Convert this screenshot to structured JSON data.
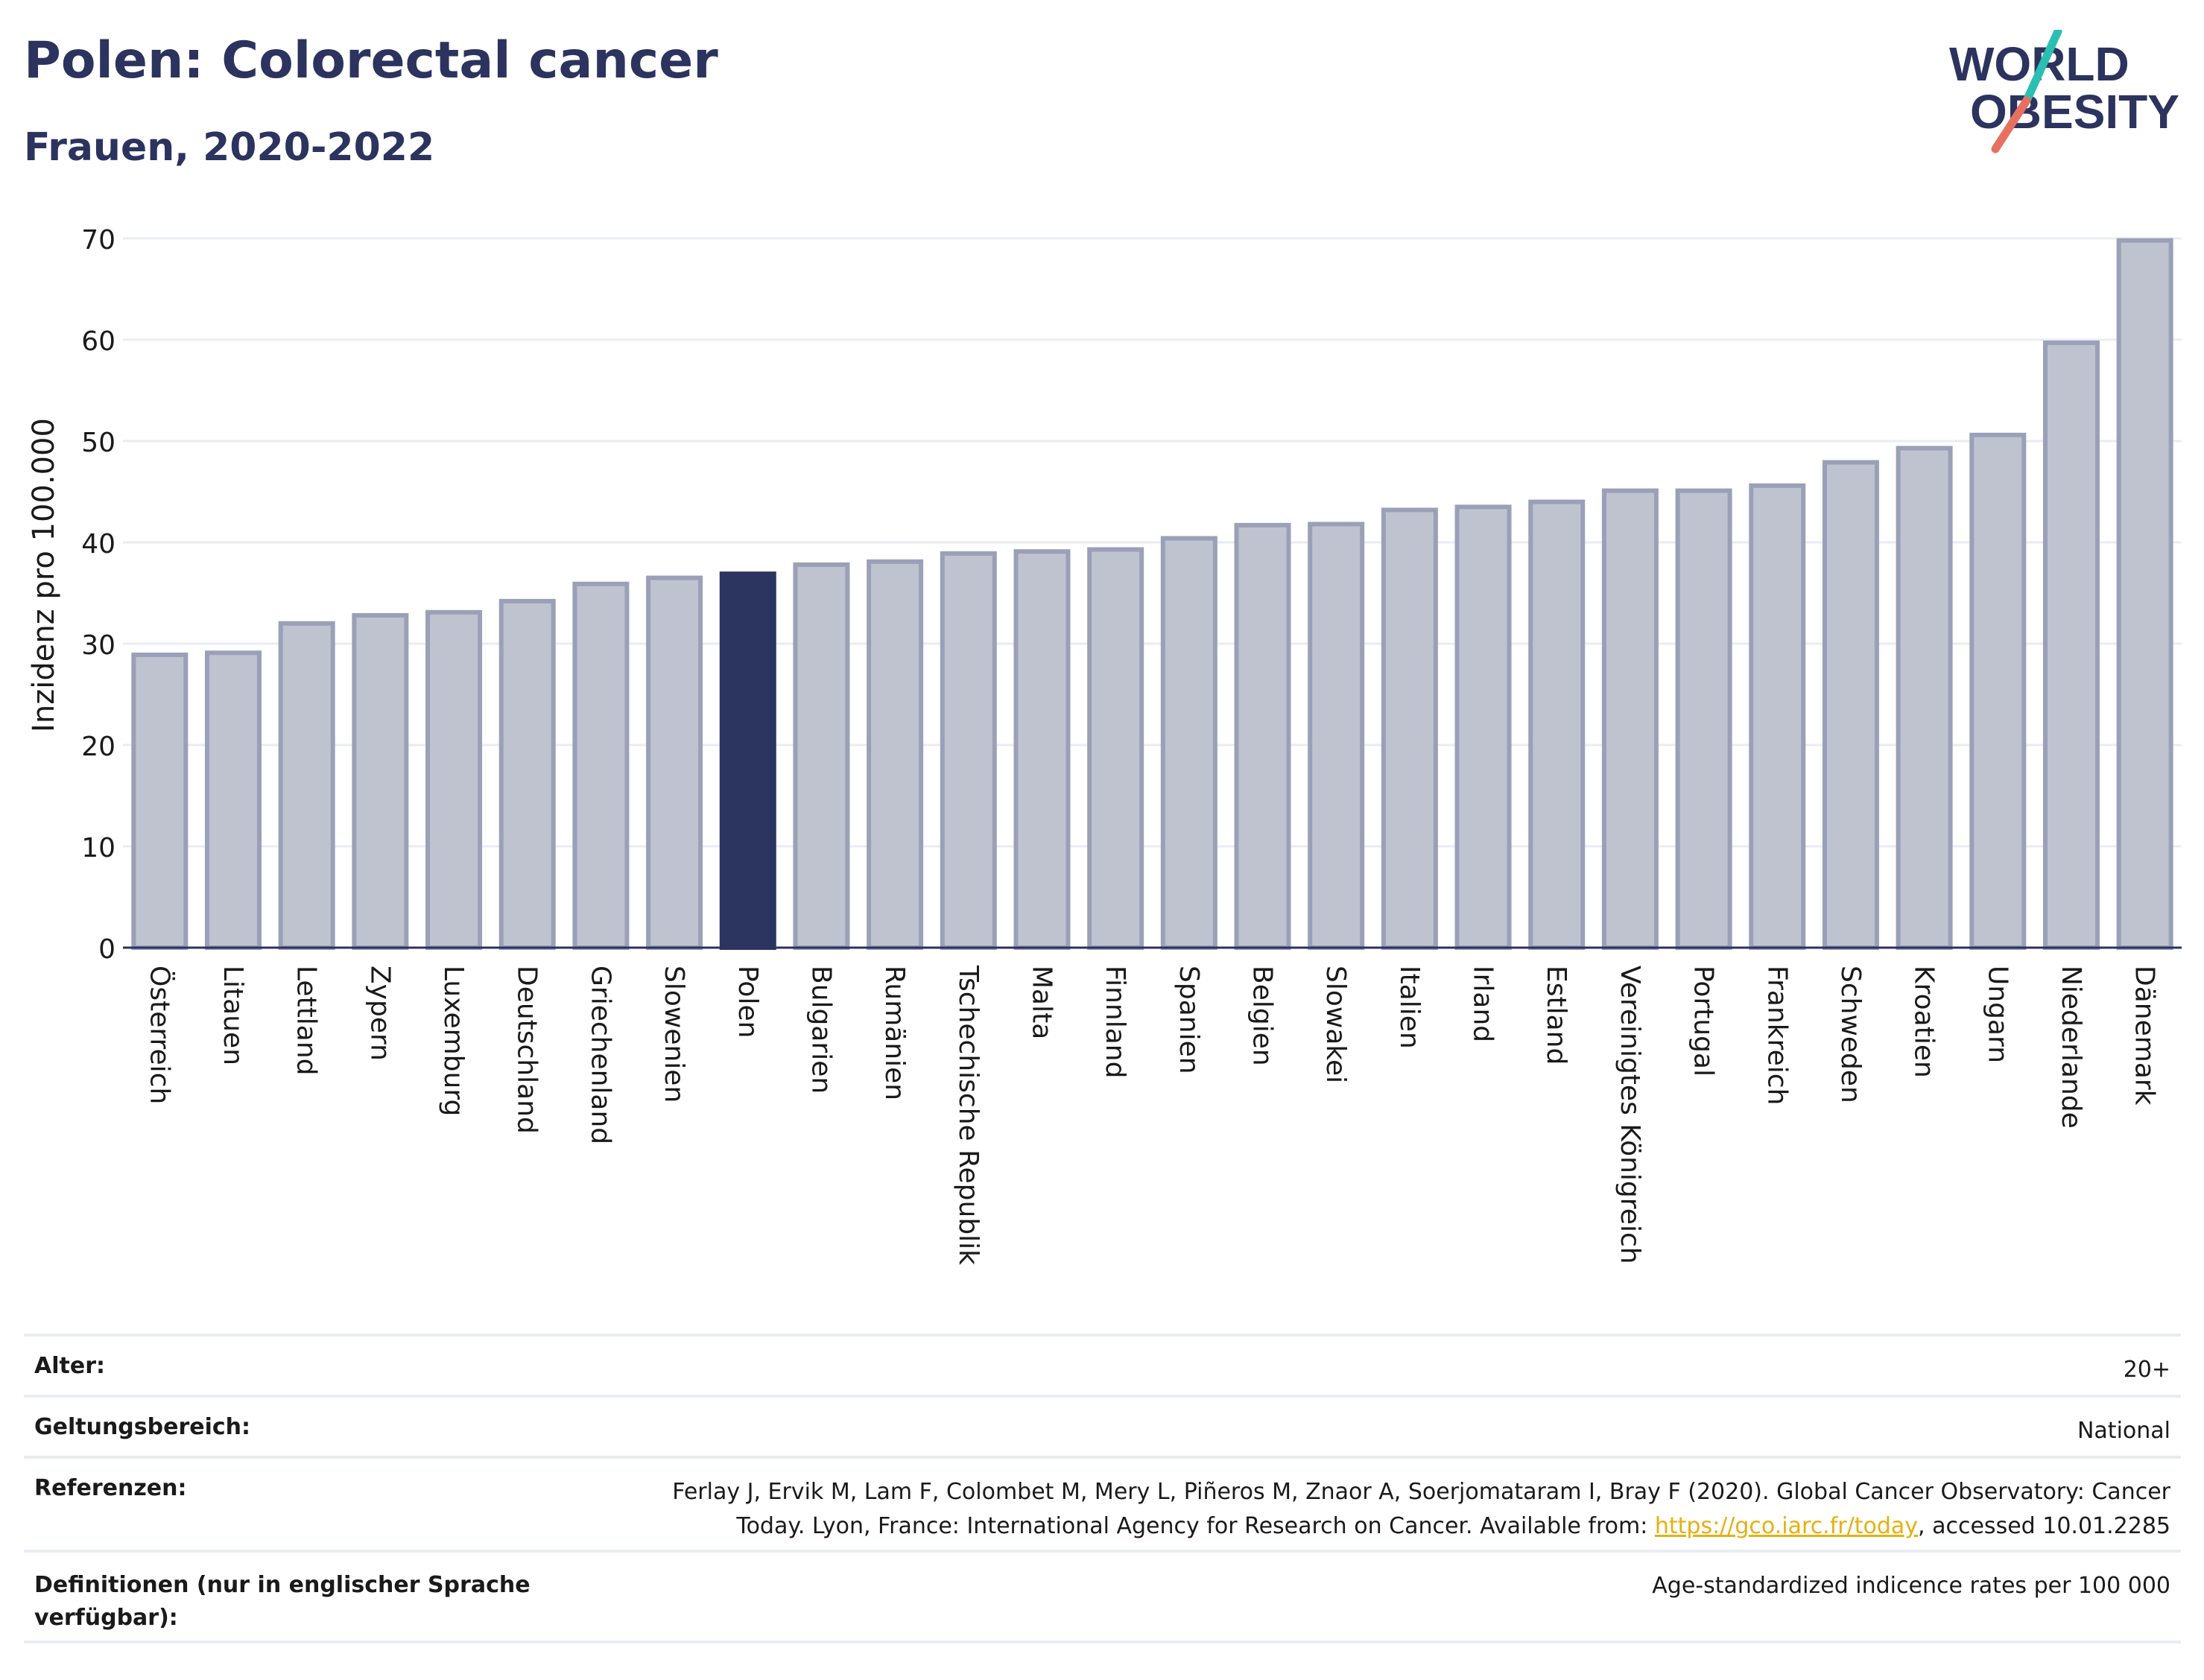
{
  "header": {
    "title": "Polen: Colorectal cancer",
    "subtitle": "Frauen, 2020-2022"
  },
  "logo": {
    "line1": "WORLD",
    "line2": "OBESITY"
  },
  "colors": {
    "text": "#2b335e",
    "bar": "#bfc3cf",
    "bar_border": "#9aa0b7",
    "highlight": "#2b3560",
    "grid": "#e9ecf3",
    "logo_teal": "#2bbfb3",
    "logo_coral": "#e87060",
    "link": "#e6b010"
  },
  "chart_data": {
    "type": "bar",
    "ylabel": "Inzidenz pro 100.000",
    "xlabel": "",
    "ylim": [
      0,
      70
    ],
    "yticks": [
      0,
      10,
      20,
      30,
      40,
      50,
      60,
      70
    ],
    "grid": true,
    "highlight": "Polen",
    "categories": [
      "Österreich",
      "Litauen",
      "Lettland",
      "Zypern",
      "Luxemburg",
      "Deutschland",
      "Griechenland",
      "Slowenien",
      "Polen",
      "Bulgarien",
      "Rumänien",
      "Tschechische Republik",
      "Malta",
      "Finnland",
      "Spanien",
      "Belgien",
      "Slowakei",
      "Italien",
      "Irland",
      "Estland",
      "Vereinigtes Königreich",
      "Portugal",
      "Frankreich",
      "Schweden",
      "Kroatien",
      "Ungarn",
      "Niederlande",
      "Dänemark"
    ],
    "values": [
      28.9,
      29.1,
      32.0,
      32.8,
      33.1,
      34.2,
      35.9,
      36.5,
      36.9,
      37.8,
      38.1,
      38.9,
      39.1,
      39.3,
      40.4,
      41.7,
      41.8,
      43.2,
      43.5,
      44.0,
      45.1,
      45.1,
      45.6,
      47.9,
      49.3,
      50.6,
      59.7,
      69.8
    ]
  },
  "info": {
    "age": {
      "label": "Alter:",
      "value": "20+"
    },
    "scope": {
      "label": "Geltungsbereich:",
      "value": "National"
    },
    "references": {
      "label": "Referenzen:",
      "line1": "Ferlay J, Ervik M, Lam F, Colombet M, Mery L, Piñeros M, Znaor A, Soerjomataram I, Bray F (2020). Global Cancer Observatory: Cancer",
      "line2_pre": "Today. Lyon, France: International Agency for Research on Cancer. Available from: ",
      "link": "https://gco.iarc.fr/today",
      "line2_post": ", accessed 10.01.2285"
    },
    "definitions": {
      "label": "Definitionen (nur in englischer Sprache verfügbar):",
      "value": "Age-standardized indicence rates per 100 000"
    }
  }
}
